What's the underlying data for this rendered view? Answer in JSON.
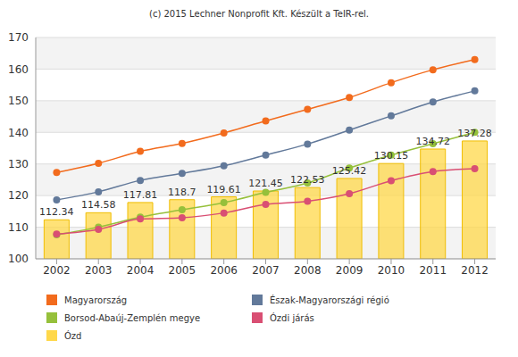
{
  "chart_data": {
    "type": "line",
    "title": "(c) 2015 Lechner Nonprofit Kft. Készült a TeIR-rel.",
    "categories": [
      "2002",
      "2003",
      "2004",
      "2005",
      "2006",
      "2007",
      "2008",
      "2009",
      "2010",
      "2011",
      "2012"
    ],
    "series": [
      {
        "name": "Magyarország",
        "type": "line",
        "color": "#f26b1d",
        "marker": "circle",
        "values": [
          127.3,
          130.2,
          134.0,
          136.5,
          139.8,
          143.6,
          147.3,
          151.0,
          155.7,
          159.8,
          163.0
        ]
      },
      {
        "name": "Észak-Magyarországi régió",
        "type": "line",
        "color": "#62799a",
        "marker": "circle",
        "values": [
          118.6,
          121.2,
          124.8,
          127.0,
          129.4,
          132.8,
          136.3,
          140.7,
          145.2,
          149.6,
          153.1
        ]
      },
      {
        "name": "Borsod-Abaúj-Zemplén megye",
        "type": "line",
        "color": "#96c03b",
        "marker": "circle",
        "values": [
          107.6,
          110.0,
          113.2,
          115.5,
          117.8,
          121.0,
          124.0,
          128.7,
          132.8,
          136.4,
          140.0
        ]
      },
      {
        "name": "Ózdi járás",
        "type": "line",
        "color": "#d94f73",
        "marker": "circle",
        "values": [
          107.8,
          109.3,
          112.6,
          113.0,
          114.5,
          117.2,
          118.2,
          120.6,
          124.7,
          127.6,
          128.5
        ]
      },
      {
        "name": "Ózd",
        "type": "bar",
        "color": "#ffd84a",
        "data_labels": true,
        "values": [
          112.34,
          114.58,
          117.81,
          118.7,
          119.61,
          121.45,
          122.53,
          125.42,
          130.15,
          134.72,
          137.28
        ]
      }
    ],
    "ylim": [
      100,
      170
    ],
    "yticks": [
      100,
      110,
      120,
      130,
      140,
      150,
      160,
      170
    ],
    "grid": true,
    "legend": "bottom"
  }
}
